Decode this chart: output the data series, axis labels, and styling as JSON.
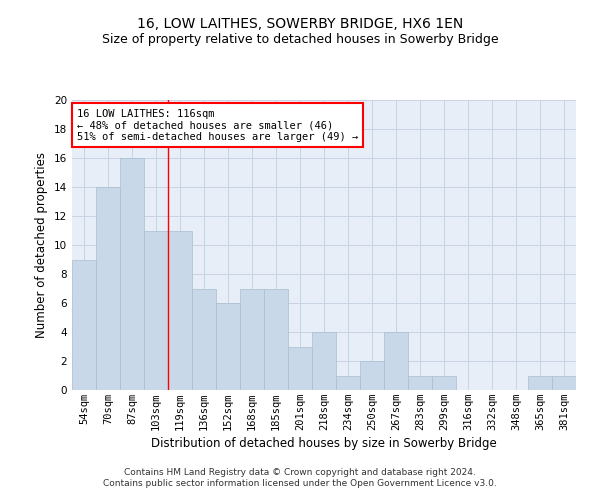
{
  "title1": "16, LOW LAITHES, SOWERBY BRIDGE, HX6 1EN",
  "title2": "Size of property relative to detached houses in Sowerby Bridge",
  "xlabel": "Distribution of detached houses by size in Sowerby Bridge",
  "ylabel": "Number of detached properties",
  "categories": [
    "54sqm",
    "70sqm",
    "87sqm",
    "103sqm",
    "119sqm",
    "136sqm",
    "152sqm",
    "168sqm",
    "185sqm",
    "201sqm",
    "218sqm",
    "234sqm",
    "250sqm",
    "267sqm",
    "283sqm",
    "299sqm",
    "316sqm",
    "332sqm",
    "348sqm",
    "365sqm",
    "381sqm"
  ],
  "values": [
    9,
    14,
    16,
    11,
    11,
    7,
    6,
    7,
    7,
    3,
    4,
    1,
    2,
    4,
    1,
    1,
    0,
    0,
    0,
    1,
    1
  ],
  "bar_color": "#c8d8e8",
  "bar_edge_color": "#a8bfd0",
  "grid_color": "#c8d4e4",
  "bg_color": "#e8eef8",
  "red_line_x": 3.5,
  "annotation_text": "16 LOW LAITHES: 116sqm\n← 48% of detached houses are smaller (46)\n51% of semi-detached houses are larger (49) →",
  "ylim": [
    0,
    20
  ],
  "yticks": [
    0,
    2,
    4,
    6,
    8,
    10,
    12,
    14,
    16,
    18,
    20
  ],
  "footer": "Contains HM Land Registry data © Crown copyright and database right 2024.\nContains public sector information licensed under the Open Government Licence v3.0.",
  "title1_fontsize": 10,
  "title2_fontsize": 9,
  "xlabel_fontsize": 8.5,
  "ylabel_fontsize": 8.5,
  "tick_fontsize": 7.5,
  "annotation_fontsize": 7.5,
  "footer_fontsize": 6.5
}
